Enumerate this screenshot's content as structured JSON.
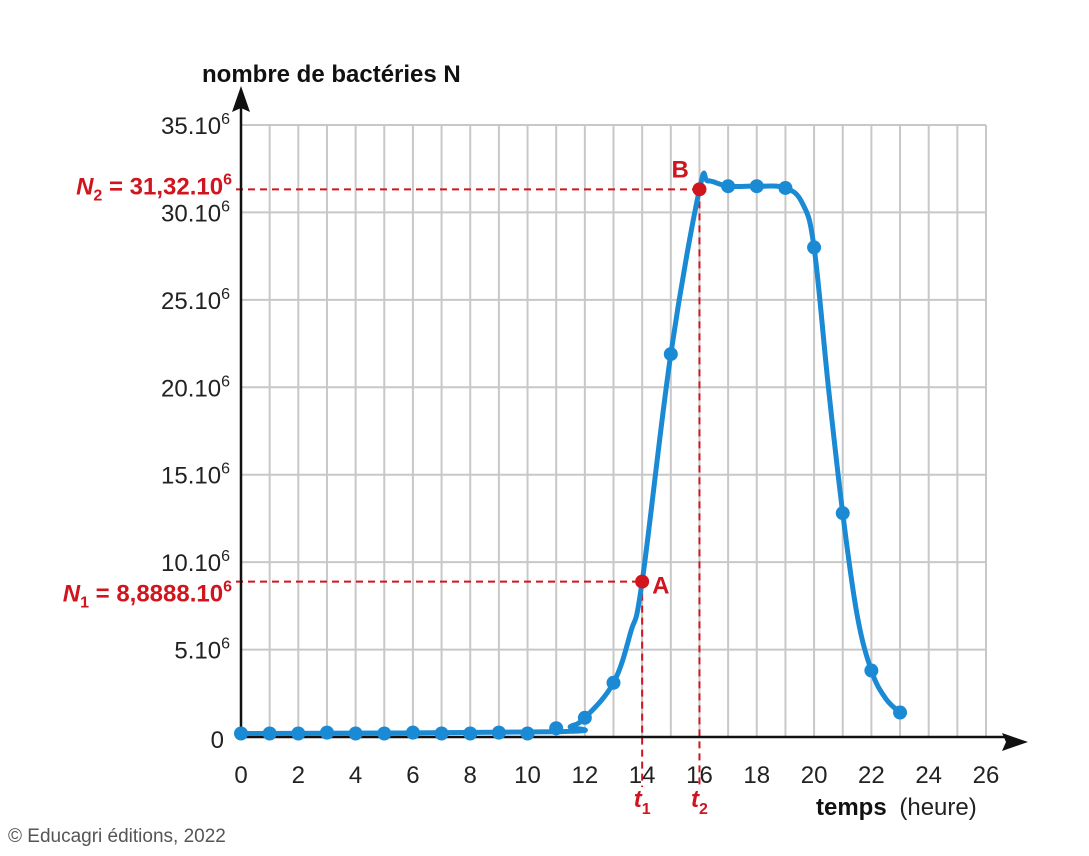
{
  "chart_data": {
    "type": "line",
    "ylabel": "nombre de bactéries N",
    "xlabel_bold": "temps",
    "xlabel_unit": "(heure)",
    "xlim": [
      0,
      26
    ],
    "ylim": [
      0,
      35000000
    ],
    "x_ticks": [
      "0",
      "2",
      "4",
      "6",
      "8",
      "10",
      "12",
      "14",
      "16",
      "18",
      "20",
      "22",
      "24",
      "26"
    ],
    "y_ticks": [
      {
        "value": 5000000,
        "base": "5.10",
        "exp": "6"
      },
      {
        "value": 10000000,
        "base": "10.10",
        "exp": "6"
      },
      {
        "value": 15000000,
        "base": "15.10",
        "exp": "6"
      },
      {
        "value": 20000000,
        "base": "20.10",
        "exp": "6"
      },
      {
        "value": 25000000,
        "base": "25.10",
        "exp": "6"
      },
      {
        "value": 30000000,
        "base": "30.10",
        "exp": "6"
      },
      {
        "value": 35000000,
        "base": "35.10",
        "exp": "6"
      }
    ],
    "y_zero_label": "0",
    "grid": true,
    "series_color": "#1a8ad4",
    "highlight_color": "#d0151f",
    "points": [
      {
        "x": 0,
        "y": 200000
      },
      {
        "x": 1,
        "y": 200000
      },
      {
        "x": 2,
        "y": 200000
      },
      {
        "x": 3,
        "y": 250000
      },
      {
        "x": 4,
        "y": 200000
      },
      {
        "x": 5,
        "y": 200000
      },
      {
        "x": 6,
        "y": 250000
      },
      {
        "x": 7,
        "y": 200000
      },
      {
        "x": 8,
        "y": 200000
      },
      {
        "x": 9,
        "y": 250000
      },
      {
        "x": 10,
        "y": 200000
      },
      {
        "x": 11,
        "y": 500000
      },
      {
        "x": 12,
        "y": 1100000
      },
      {
        "x": 13,
        "y": 3100000
      },
      {
        "x": 15,
        "y": 21900000
      },
      {
        "x": 17,
        "y": 31500000
      },
      {
        "x": 18,
        "y": 31500000
      },
      {
        "x": 19,
        "y": 31400000
      },
      {
        "x": 20,
        "y": 28000000
      },
      {
        "x": 21,
        "y": 12800000
      },
      {
        "x": 22,
        "y": 3800000
      },
      {
        "x": 23,
        "y": 1400000
      }
    ],
    "curve_points": [
      {
        "x": 0,
        "y": 200000
      },
      {
        "x": 11,
        "y": 300000
      },
      {
        "x": 11.5,
        "y": 600000
      },
      {
        "x": 12,
        "y": 1100000
      },
      {
        "x": 13,
        "y": 3100000
      },
      {
        "x": 13.6,
        "y": 6000000
      },
      {
        "x": 14,
        "y": 8888800
      },
      {
        "x": 15,
        "y": 21900000
      },
      {
        "x": 16,
        "y": 31320000
      },
      {
        "x": 16.3,
        "y": 31800000
      },
      {
        "x": 17,
        "y": 31500000
      },
      {
        "x": 18,
        "y": 31500000
      },
      {
        "x": 19,
        "y": 31400000
      },
      {
        "x": 19.6,
        "y": 30500000
      },
      {
        "x": 20,
        "y": 28000000
      },
      {
        "x": 20.5,
        "y": 20000000
      },
      {
        "x": 21,
        "y": 12800000
      },
      {
        "x": 21.5,
        "y": 7000000
      },
      {
        "x": 22,
        "y": 3800000
      },
      {
        "x": 22.5,
        "y": 2200000
      },
      {
        "x": 23,
        "y": 1400000
      }
    ],
    "annotations": {
      "A": {
        "label": "A",
        "x": 14,
        "y": 8888800,
        "n_base": "N",
        "n_sub": "1",
        "n_text": " = 8,8888.10",
        "n_exp": "6",
        "t_base": "t",
        "t_sub": "1"
      },
      "B": {
        "label": "B",
        "x": 16,
        "y": 31320000,
        "n_base": "N",
        "n_sub": "2",
        "n_text": " = 31,32.10",
        "n_exp": "6",
        "t_base": "t",
        "t_sub": "2"
      }
    }
  },
  "credit": "© Educagri éditions, 2022"
}
